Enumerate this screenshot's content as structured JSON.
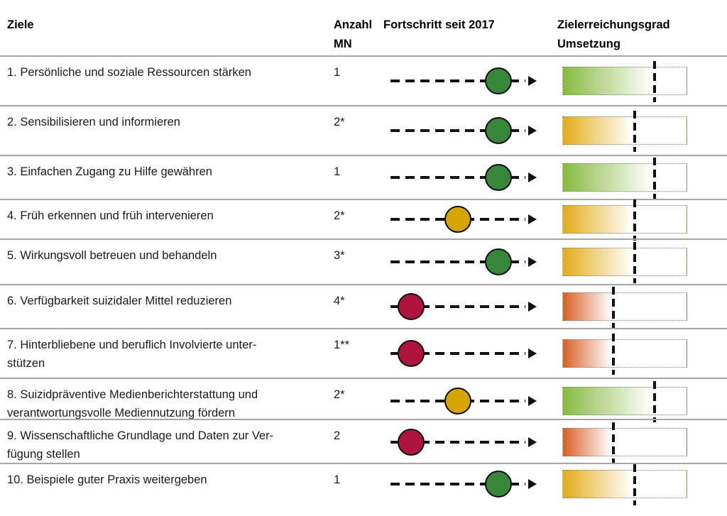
{
  "header": {
    "goal": "Ziele",
    "count": "Anzahl\nMN",
    "progress": "Fortschritt seit 2017",
    "achievement": "Zielerreichungsgrad\nUmsetzung"
  },
  "colors": {
    "dot": {
      "green": "#37873a",
      "yellow": "#d7a502",
      "red": "#b11341"
    },
    "bar": {
      "green": "#87ba41",
      "yellow": "#e3ac18",
      "orange": "#d85f24"
    },
    "separator": "#a5a5a5",
    "marker": "#111111"
  },
  "chart_data": {
    "type": "table",
    "columns": [
      "Ziele",
      "Anzahl MN",
      "Fortschritt seit 2017",
      "Zielerreichungsgrad Umsetzung"
    ],
    "progress_axis": {
      "min": 0,
      "max": 1,
      "note": "position of status circle along dashed arrow"
    },
    "achievement_axis": {
      "min": 0,
      "max": 1,
      "note": "gradient fill fades out at dashed target marker"
    },
    "rows": [
      {
        "ziel": "1. Persönliche und soziale Ressourcen stärken",
        "anzahl_mn": "1",
        "fortschritt": {
          "status": "green",
          "position": 0.8
        },
        "umsetzung": {
          "fill": "green",
          "marker": 0.74
        }
      },
      {
        "ziel": "2. Sensibilisieren und informieren",
        "anzahl_mn": "2*",
        "fortschritt": {
          "status": "green",
          "position": 0.8
        },
        "umsetzung": {
          "fill": "yellow",
          "marker": 0.58
        }
      },
      {
        "ziel": "3. Einfachen Zugang zu Hilfe gewähren",
        "anzahl_mn": "1",
        "fortschritt": {
          "status": "green",
          "position": 0.8
        },
        "umsetzung": {
          "fill": "green",
          "marker": 0.74
        }
      },
      {
        "ziel": "4. Früh erkennen und früh intervenieren",
        "anzahl_mn": "2*",
        "fortschritt": {
          "status": "yellow",
          "position": 0.5
        },
        "umsetzung": {
          "fill": "yellow",
          "marker": 0.58
        }
      },
      {
        "ziel": "5. Wirkungsvoll betreuen und behandeln",
        "anzahl_mn": "3*",
        "fortschritt": {
          "status": "green",
          "position": 0.8
        },
        "umsetzung": {
          "fill": "yellow",
          "marker": 0.58
        }
      },
      {
        "ziel": "6. Verfügbarkeit suizidaler Mittel reduzieren",
        "anzahl_mn": "4*",
        "fortschritt": {
          "status": "red",
          "position": 0.15
        },
        "umsetzung": {
          "fill": "orange",
          "marker": 0.41
        }
      },
      {
        "ziel": "7. Hinterbliebene und beruflich Involvierte unter-\nstützen",
        "anzahl_mn": "1**",
        "fortschritt": {
          "status": "red",
          "position": 0.15
        },
        "umsetzung": {
          "fill": "orange",
          "marker": 0.41
        }
      },
      {
        "ziel": "8. Suizidpräventive Medienberichterstattung und\nverantwortungsvolle Mediennutzung fördern",
        "anzahl_mn": "2*",
        "fortschritt": {
          "status": "yellow",
          "position": 0.5
        },
        "umsetzung": {
          "fill": "green",
          "marker": 0.74
        }
      },
      {
        "ziel": "9. Wissenschaftliche Grundlage und Daten zur Ver-\nfügung stellen",
        "anzahl_mn": "2",
        "fortschritt": {
          "status": "red",
          "position": 0.15
        },
        "umsetzung": {
          "fill": "orange",
          "marker": 0.41
        }
      },
      {
        "ziel": "10. Beispiele guter Praxis weitergeben",
        "anzahl_mn": "1",
        "fortschritt": {
          "status": "green",
          "position": 0.8
        },
        "umsetzung": {
          "fill": "yellow",
          "marker": 0.58
        }
      }
    ]
  }
}
